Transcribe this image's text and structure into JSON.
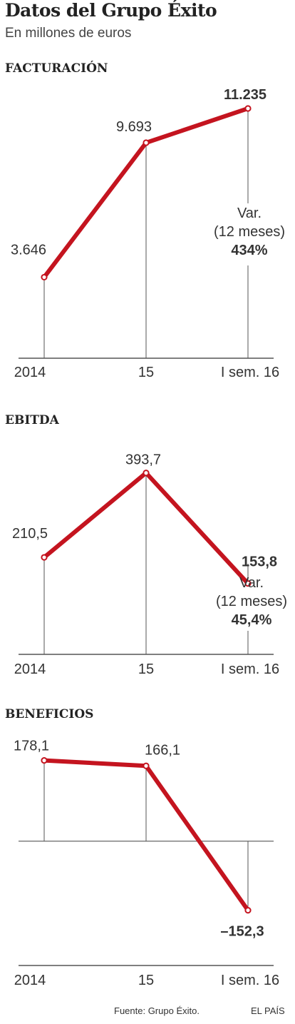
{
  "header": {
    "title": "Datos del Grupo Éxito",
    "subtitle": "En millones de euros"
  },
  "chart_data": [
    {
      "type": "line",
      "title": "FACTURACIÓN",
      "categories": [
        "2014",
        "15",
        "I sem. 16"
      ],
      "values": [
        3646,
        9693,
        11235
      ],
      "value_labels": [
        "3.646",
        "9.693",
        "11.235"
      ],
      "ylim": [
        0,
        13000
      ],
      "grid": false,
      "annotation": [
        "Var.",
        "(12 meses)",
        "434%"
      ]
    },
    {
      "type": "line",
      "title": "EBITDA",
      "categories": [
        "2014",
        "15",
        "I sem. 16"
      ],
      "values": [
        210.5,
        393.7,
        153.8
      ],
      "value_labels": [
        "210,5",
        "393,7",
        "153,8"
      ],
      "ylim": [
        0,
        480
      ],
      "grid": false,
      "annotation": [
        "Var.",
        "(12 meses)",
        "45,4%"
      ]
    },
    {
      "type": "line",
      "title": "BENEFICIOS",
      "categories": [
        "2014",
        "15",
        "I sem. 16"
      ],
      "values": [
        178.1,
        166.1,
        -152.3
      ],
      "value_labels": [
        "178,1",
        "166,1",
        "–152,3"
      ],
      "ylim": [
        -252,
        220
      ],
      "grid": false
    }
  ],
  "colors": {
    "line": "#c4141f",
    "axis": "#555555",
    "text": "#333333"
  },
  "footer": {
    "source": "Fuente: Grupo Éxito.",
    "brand": "EL PAÍS"
  }
}
